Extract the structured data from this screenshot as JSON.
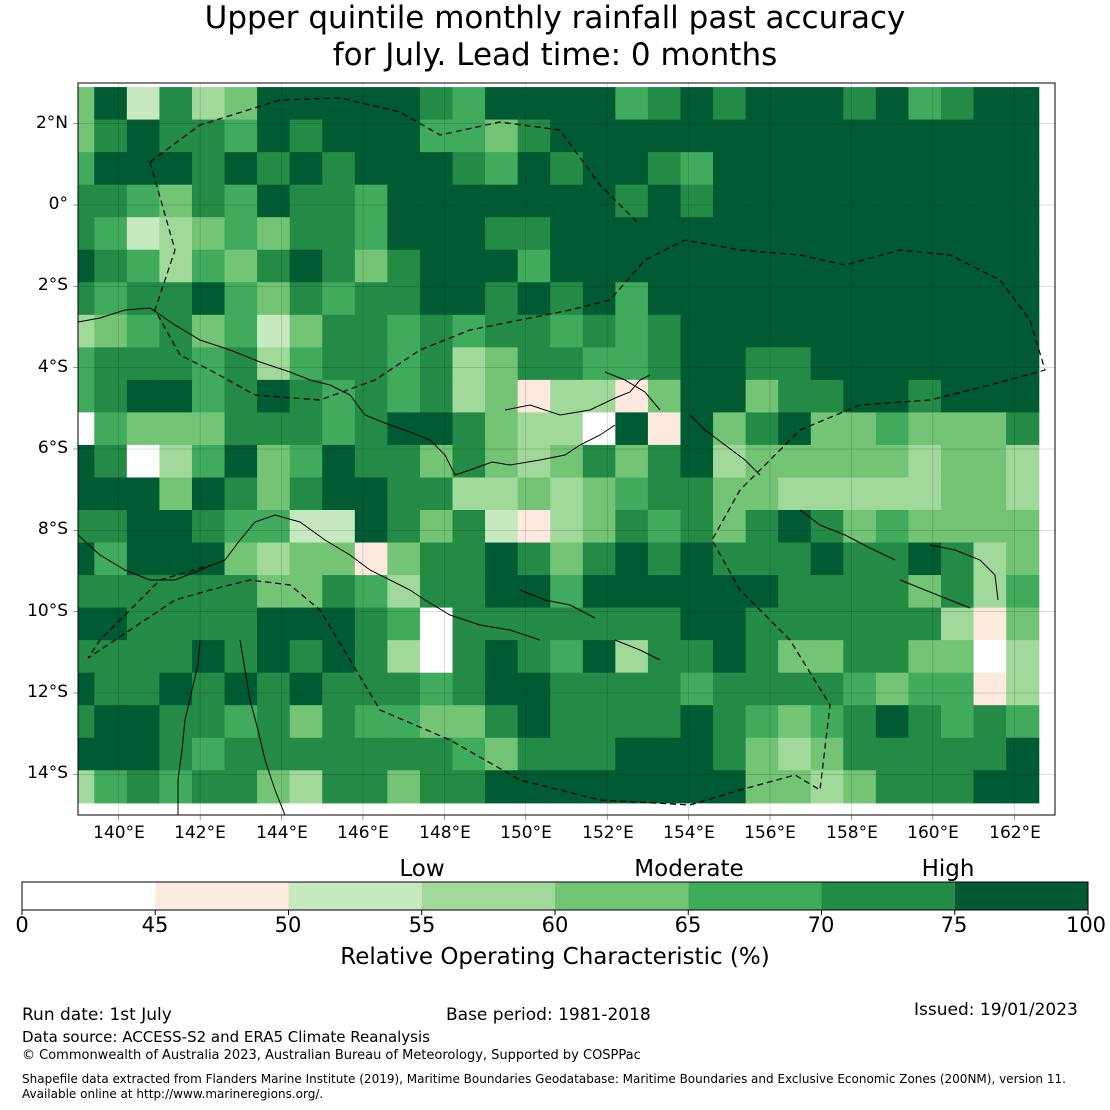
{
  "title": {
    "line1": "Upper quintile monthly rainfall past accuracy",
    "line2": "for July. Lead time: 0 months"
  },
  "map": {
    "lat_labels": [
      "2°N",
      "0°",
      "2°S",
      "4°S",
      "6°S",
      "8°S",
      "10°S",
      "12°S",
      "14°S"
    ],
    "lon_labels": [
      "140°E",
      "142°E",
      "144°E",
      "146°E",
      "148°E",
      "150°E",
      "152°E",
      "154°E",
      "156°E",
      "158°E",
      "160°E",
      "162°E"
    ],
    "lat_range": [
      -15,
      3
    ],
    "lon_range": [
      139,
      163
    ],
    "grid_columns": [
      "139.0",
      "139.8",
      "140.6",
      "141.4",
      "142.2",
      "143.0",
      "143.8",
      "144.6",
      "145.4",
      "146.2",
      "147.0",
      "147.8",
      "148.6",
      "149.4",
      "150.2",
      "151.0",
      "151.8",
      "152.6",
      "153.4",
      "154.2",
      "155.0",
      "155.8",
      "156.6",
      "157.4",
      "158.2",
      "159.0",
      "159.8",
      "160.6",
      "161.4",
      "162.2"
    ],
    "grid_rows": [
      "2.5",
      "1.7",
      "0.9",
      "0.1",
      "-0.7",
      "-1.5",
      "-2.3",
      "-3.1",
      "-3.9",
      "-4.7",
      "-5.5",
      "-6.3",
      "-7.1",
      "-7.9",
      "-8.7",
      "-9.5",
      "-10.3",
      "-11.1",
      "-11.9",
      "-12.7",
      "-13.5",
      "-14.3"
    ],
    "grid_cell_size_deg": 0.8,
    "grid_values": [
      [
        62,
        77,
        52,
        72,
        57,
        62,
        77,
        77,
        77,
        77,
        77,
        72,
        67,
        77,
        77,
        77,
        77,
        67,
        72,
        77,
        72,
        77,
        77,
        77,
        72,
        77,
        67,
        72,
        77,
        77
      ],
      [
        62,
        72,
        77,
        72,
        72,
        67,
        77,
        72,
        77,
        77,
        77,
        67,
        67,
        62,
        72,
        77,
        77,
        77,
        77,
        77,
        77,
        77,
        77,
        77,
        77,
        77,
        77,
        77,
        77,
        77
      ],
      [
        67,
        77,
        77,
        77,
        72,
        77,
        72,
        77,
        72,
        77,
        77,
        77,
        72,
        67,
        77,
        72,
        77,
        77,
        72,
        67,
        77,
        77,
        77,
        77,
        77,
        77,
        77,
        77,
        77,
        77
      ],
      [
        72,
        72,
        67,
        62,
        72,
        67,
        77,
        72,
        72,
        67,
        77,
        77,
        77,
        77,
        77,
        77,
        77,
        72,
        77,
        72,
        77,
        77,
        77,
        77,
        77,
        77,
        77,
        77,
        77,
        77
      ],
      [
        72,
        67,
        52,
        57,
        62,
        67,
        62,
        72,
        72,
        67,
        77,
        77,
        77,
        72,
        72,
        77,
        77,
        77,
        77,
        77,
        77,
        77,
        77,
        77,
        77,
        77,
        77,
        77,
        77,
        77
      ],
      [
        77,
        72,
        67,
        57,
        67,
        62,
        72,
        77,
        72,
        62,
        72,
        77,
        77,
        77,
        67,
        77,
        77,
        77,
        77,
        77,
        77,
        77,
        77,
        77,
        77,
        77,
        77,
        77,
        77,
        77
      ],
      [
        72,
        67,
        72,
        72,
        77,
        67,
        62,
        72,
        67,
        72,
        72,
        77,
        77,
        72,
        77,
        72,
        77,
        67,
        77,
        77,
        77,
        77,
        77,
        77,
        77,
        77,
        77,
        77,
        77,
        77
      ],
      [
        57,
        62,
        67,
        72,
        62,
        67,
        52,
        62,
        72,
        72,
        67,
        72,
        67,
        72,
        72,
        67,
        72,
        67,
        72,
        77,
        77,
        77,
        77,
        77,
        77,
        77,
        77,
        77,
        77,
        77
      ],
      [
        67,
        72,
        72,
        72,
        67,
        72,
        57,
        67,
        72,
        72,
        67,
        72,
        57,
        62,
        72,
        72,
        67,
        67,
        72,
        77,
        77,
        72,
        72,
        77,
        77,
        77,
        77,
        77,
        77,
        77
      ],
      [
        67,
        72,
        77,
        77,
        67,
        72,
        77,
        72,
        67,
        72,
        67,
        72,
        57,
        62,
        47,
        57,
        57,
        47,
        62,
        77,
        77,
        62,
        72,
        72,
        77,
        77,
        72,
        77,
        77,
        77
      ],
      [
        0,
        67,
        62,
        62,
        62,
        72,
        72,
        72,
        67,
        72,
        77,
        77,
        72,
        62,
        57,
        57,
        0,
        77,
        47,
        77,
        62,
        72,
        77,
        62,
        62,
        67,
        62,
        62,
        62,
        72
      ],
      [
        77,
        72,
        0,
        57,
        67,
        77,
        62,
        67,
        77,
        72,
        72,
        62,
        72,
        62,
        57,
        62,
        72,
        62,
        72,
        77,
        57,
        62,
        62,
        62,
        62,
        62,
        57,
        62,
        62,
        57
      ],
      [
        77,
        77,
        77,
        62,
        77,
        72,
        62,
        72,
        77,
        77,
        72,
        72,
        57,
        57,
        62,
        57,
        62,
        67,
        72,
        72,
        62,
        62,
        57,
        57,
        57,
        57,
        57,
        62,
        62,
        57
      ],
      [
        72,
        72,
        77,
        77,
        72,
        67,
        67,
        52,
        52,
        77,
        72,
        62,
        72,
        52,
        47,
        57,
        62,
        72,
        67,
        72,
        62,
        72,
        77,
        72,
        62,
        67,
        62,
        62,
        62,
        62
      ],
      [
        77,
        67,
        77,
        77,
        77,
        62,
        57,
        62,
        62,
        47,
        62,
        72,
        72,
        77,
        72,
        62,
        72,
        77,
        72,
        77,
        72,
        72,
        72,
        77,
        72,
        72,
        77,
        72,
        57,
        62
      ],
      [
        72,
        72,
        72,
        72,
        72,
        72,
        62,
        62,
        72,
        67,
        57,
        72,
        72,
        77,
        77,
        67,
        77,
        77,
        77,
        77,
        77,
        77,
        72,
        72,
        72,
        72,
        62,
        72,
        57,
        67
      ],
      [
        77,
        77,
        72,
        72,
        72,
        72,
        77,
        77,
        77,
        72,
        67,
        0,
        72,
        72,
        72,
        72,
        72,
        72,
        72,
        77,
        77,
        72,
        72,
        72,
        72,
        72,
        72,
        57,
        47,
        62
      ],
      [
        72,
        72,
        72,
        72,
        77,
        72,
        77,
        72,
        77,
        72,
        57,
        0,
        72,
        77,
        72,
        67,
        77,
        57,
        72,
        72,
        77,
        72,
        62,
        62,
        72,
        72,
        62,
        62,
        0,
        57
      ],
      [
        77,
        72,
        72,
        77,
        72,
        77,
        72,
        77,
        72,
        72,
        72,
        67,
        72,
        77,
        77,
        72,
        72,
        72,
        72,
        67,
        72,
        72,
        72,
        72,
        67,
        62,
        67,
        67,
        47,
        57
      ],
      [
        72,
        77,
        77,
        72,
        72,
        67,
        72,
        62,
        72,
        67,
        67,
        62,
        62,
        72,
        77,
        72,
        72,
        72,
        72,
        77,
        72,
        67,
        62,
        67,
        72,
        77,
        72,
        67,
        72,
        67
      ],
      [
        77,
        77,
        77,
        72,
        67,
        72,
        72,
        72,
        72,
        72,
        72,
        72,
        67,
        62,
        72,
        72,
        72,
        77,
        77,
        77,
        72,
        62,
        57,
        62,
        72,
        72,
        72,
        72,
        72,
        77
      ],
      [
        57,
        67,
        72,
        67,
        72,
        72,
        62,
        57,
        72,
        72,
        62,
        72,
        72,
        77,
        77,
        77,
        77,
        77,
        77,
        77,
        77,
        62,
        62,
        57,
        62,
        72,
        72,
        72,
        77,
        77
      ]
    ]
  },
  "colorbar": {
    "title": "Relative Operating Characteristic (%)",
    "categories": [
      "Low",
      "Moderate",
      "High"
    ],
    "ticks": [
      "0",
      "45",
      "50",
      "55",
      "60",
      "65",
      "70",
      "75",
      "100"
    ],
    "bins": [
      {
        "from": 0,
        "to": 45,
        "color": "#ffffff"
      },
      {
        "from": 45,
        "to": 50,
        "color": "#fee9df"
      },
      {
        "from": 50,
        "to": 55,
        "color": "#c7e9c0"
      },
      {
        "from": 55,
        "to": 60,
        "color": "#a1d99b"
      },
      {
        "from": 60,
        "to": 65,
        "color": "#74c476"
      },
      {
        "from": 65,
        "to": 70,
        "color": "#41ab5d"
      },
      {
        "from": 70,
        "to": 75,
        "color": "#238b45"
      },
      {
        "from": 75,
        "to": 100,
        "color": "#005a32"
      }
    ]
  },
  "footer": {
    "run_date": "Run date: 1st July",
    "base_period": "Base period: 1981-2018",
    "issued": "Issued: 19/01/2023",
    "data_source": "Data source: ACCESS-S2 and ERA5 Climate Reanalysis",
    "copyright": "© Commonwealth of Australia 2023, Australian Bureau of Meteorology, Supported by COSPPac",
    "shapefile_line1": "Shapefile data extracted from Flanders Marine Institute (2019), Maritime Boundaries Geodatabase: Maritime Boundaries and Exclusive Economic Zones (200NM), version 11.",
    "shapefile_line2": "Available online at http://www.marineregions.org/."
  }
}
